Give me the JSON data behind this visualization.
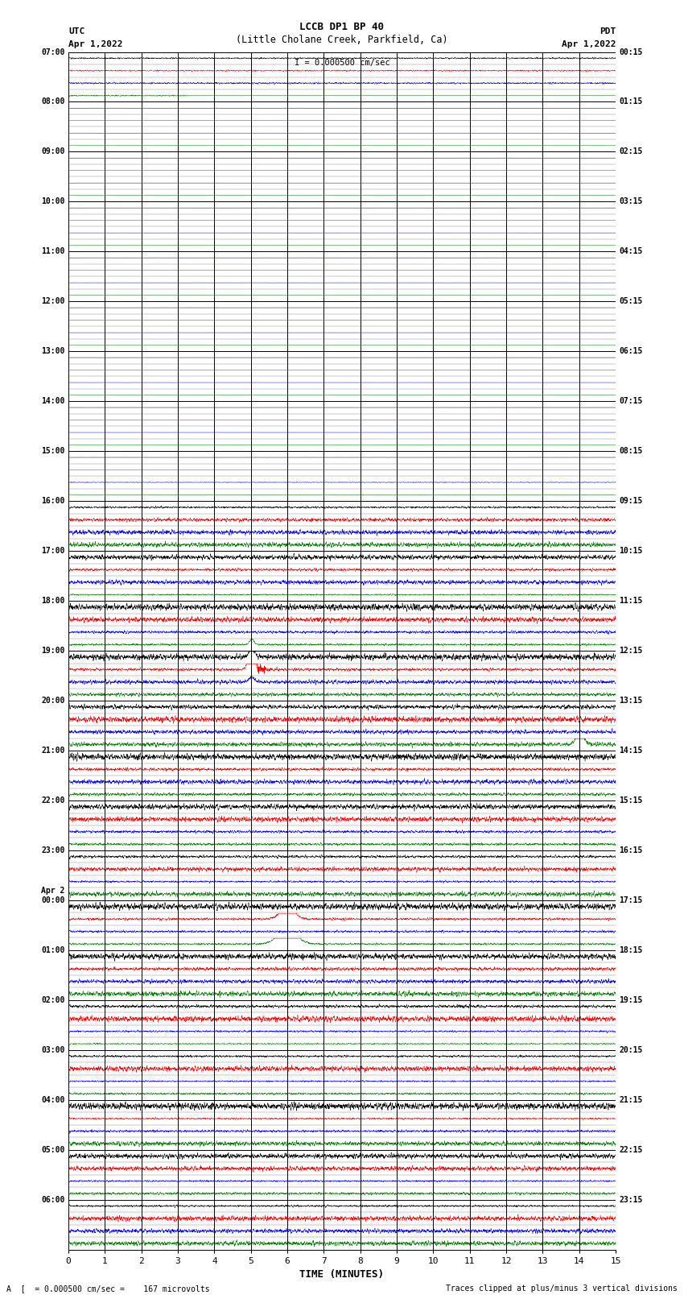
{
  "title_line1": "LCCB DP1 BP 40",
  "title_line2": "(Little Cholane Creek, Parkfield, Ca)",
  "scale_label": "I = 0.000500 cm/sec",
  "left_label": "UTC",
  "left_date": "Apr 1,2022",
  "right_label": "PDT",
  "right_date": "Apr 1,2022",
  "xlabel": "TIME (MINUTES)",
  "bottom_left": "A  [  = 0.000500 cm/sec =    167 microvolts",
  "bottom_right": "Traces clipped at plus/minus 3 vertical divisions",
  "utc_times": [
    "07:00",
    "08:00",
    "09:00",
    "10:00",
    "11:00",
    "12:00",
    "13:00",
    "14:00",
    "15:00",
    "16:00",
    "17:00",
    "18:00",
    "19:00",
    "20:00",
    "21:00",
    "22:00",
    "23:00",
    "Apr 2\n00:00",
    "01:00",
    "02:00",
    "03:00",
    "04:00",
    "05:00",
    "06:00"
  ],
  "pdt_times": [
    "00:15",
    "01:15",
    "02:15",
    "03:15",
    "04:15",
    "05:15",
    "06:15",
    "07:15",
    "08:15",
    "09:15",
    "10:15",
    "11:15",
    "12:15",
    "13:15",
    "14:15",
    "15:15",
    "16:15",
    "17:15",
    "18:15",
    "19:15",
    "20:15",
    "21:15",
    "22:15",
    "23:15"
  ],
  "n_rows": 24,
  "n_points": 3600,
  "colors": [
    "black",
    "red",
    "blue",
    "green"
  ],
  "background_color": "white",
  "grid_color": "#888888",
  "fig_width": 8.5,
  "fig_height": 16.13,
  "dpi": 100
}
